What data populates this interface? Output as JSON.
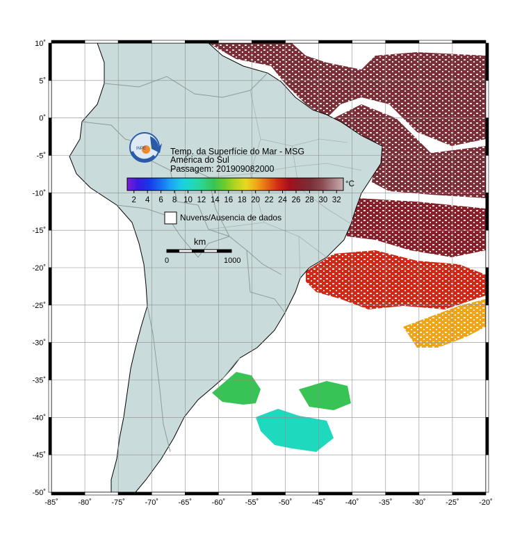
{
  "map": {
    "title_lines": [
      "Temp. da Superfície do Mar - MSG",
      "América do Sul",
      "Passagem: 201909082000"
    ],
    "lon_range": [
      -85,
      -20
    ],
    "lat_range": [
      -50,
      10
    ],
    "lon_ticks": [
      "-85˚",
      "-80˚",
      "-75˚",
      "-70˚",
      "-65˚",
      "-60˚",
      "-55˚",
      "-50˚",
      "-45˚",
      "-40˚",
      "-35˚",
      "-30˚",
      "-25˚",
      "-20˚"
    ],
    "lat_ticks": [
      "10˚",
      "5˚",
      "0˚",
      "-5˚",
      "-10˚",
      "-15˚",
      "-20˚",
      "-25˚",
      "-30˚",
      "-35˚",
      "-40˚",
      "-45˚",
      "-50˚"
    ],
    "colorbar": {
      "unit": "°C",
      "ticks": [
        "2",
        "4",
        "6",
        "8",
        "10",
        "12",
        "14",
        "16",
        "18",
        "20",
        "22",
        "24",
        "26",
        "28",
        "30",
        "32"
      ],
      "min": 1,
      "max": 33,
      "colors": [
        "#7a1fd6",
        "#3b19e0",
        "#1737e8",
        "#1769f0",
        "#1aa2f2",
        "#1ccde6",
        "#1fd9bf",
        "#2ed48a",
        "#38c455",
        "#6ccc2a",
        "#b4d420",
        "#e8d820",
        "#f0a418",
        "#e46414",
        "#d02816",
        "#a3101c",
        "#86202a",
        "#7a3038",
        "#8a4a50",
        "#a77c80",
        "#c8aeb0"
      ]
    },
    "legend": {
      "missing_label": "Nuvens/Ausencia de dados",
      "missing_color": "#ffffff"
    },
    "scale_bar": {
      "unit": "km",
      "start": "0",
      "end": "1000"
    },
    "colors": {
      "land": "#c9dcdb",
      "ocean_nodata": "#ffffff",
      "border": "#8f9b9b",
      "coast": "#000000"
    },
    "sst_regions": [
      {
        "name": "north-equatorial",
        "temp_c": 28
      },
      {
        "name": "central-atlantic",
        "temp_c": 28
      },
      {
        "name": "brazil-current",
        "temp_c": 26
      },
      {
        "name": "south-brazil",
        "temp_c": 24
      },
      {
        "name": "subtropical-south",
        "temp_c": 20
      },
      {
        "name": "argentine-shelf",
        "temp_c": 14
      },
      {
        "name": "falklands",
        "temp_c": 11
      }
    ]
  }
}
